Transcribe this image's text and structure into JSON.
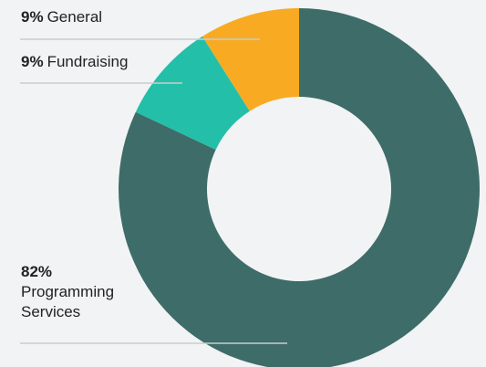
{
  "chart_data": {
    "type": "donut",
    "slices": [
      {
        "label": "General",
        "value": 9,
        "value_text": "9%",
        "color": "#f8ab22"
      },
      {
        "label": "Fundraising",
        "value": 9,
        "value_text": "9%",
        "color": "#24bfa8"
      },
      {
        "label": "Programming Services",
        "value": 82,
        "value_text": "82%",
        "color": "#3e6c69"
      }
    ],
    "legend": "leader-line labels on left",
    "line_color": "#c9cccf"
  }
}
